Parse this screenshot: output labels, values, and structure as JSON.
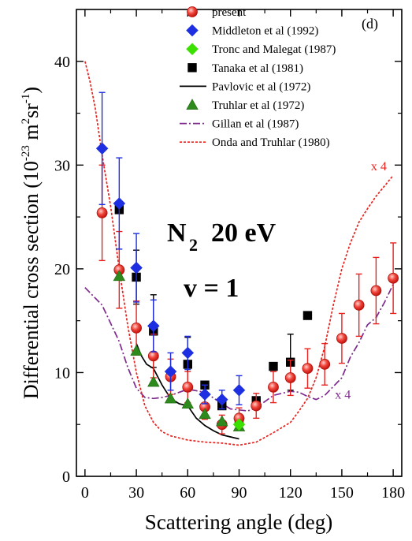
{
  "chart_data": {
    "type": "scatter",
    "panel_label": "(d)",
    "title_molecule": "N",
    "title_subscript": "2",
    "title_energy": "20 eV",
    "title_vib": "v = 1",
    "xlabel": "Scattering angle (deg)",
    "ylabel_parts": [
      "Differential cross section (10",
      "-23",
      " m",
      "2",
      "sr",
      "-1",
      ")"
    ],
    "xlim": [
      -5,
      185
    ],
    "ylim": [
      0,
      45
    ],
    "xticks": [
      0,
      30,
      60,
      90,
      120,
      150,
      180
    ],
    "yticks": [
      0,
      10,
      20,
      30,
      40
    ],
    "xtick_labels": [
      "0",
      "30",
      "60",
      "90",
      "120",
      "150",
      "180"
    ],
    "ytick_labels": [
      "0",
      "10",
      "20",
      "30",
      "40"
    ],
    "annotations": [
      {
        "text": "x 4",
        "x": 167,
        "y": 29.5,
        "color": "#e8231f"
      },
      {
        "text": "x 4",
        "x": 146,
        "y": 7.5,
        "color": "#7d2a8c"
      }
    ],
    "series": [
      {
        "name": "present",
        "kind": "points",
        "marker": "circle",
        "color": "#e8231f",
        "x": [
          10,
          20,
          30,
          40,
          50,
          60,
          70,
          80,
          90,
          100,
          110,
          120,
          130,
          140,
          150,
          160,
          170,
          180
        ],
        "y": [
          25.4,
          19.9,
          14.3,
          11.6,
          9.6,
          8.6,
          6.7,
          5.0,
          5.6,
          6.8,
          8.6,
          9.5,
          10.4,
          10.8,
          13.3,
          16.5,
          17.9,
          19.1
        ],
        "err": [
          4.6,
          3.7,
          2.6,
          2.1,
          1.7,
          1.5,
          1.2,
          0.9,
          1.0,
          1.2,
          1.5,
          1.7,
          1.9,
          2.0,
          2.4,
          3.0,
          3.2,
          3.4
        ]
      },
      {
        "name": "Middleton et al (1992)",
        "kind": "points",
        "marker": "diamond",
        "color": "#1d2fe0",
        "x": [
          10,
          20,
          30,
          40,
          50,
          60,
          70,
          80,
          90
        ],
        "y": [
          31.6,
          26.3,
          20.1,
          14.5,
          10.1,
          11.9,
          7.9,
          7.4,
          8.3
        ],
        "err": [
          5.4,
          4.4,
          3.3,
          2.5,
          1.8,
          1.6,
          0.9,
          0.9,
          1.4
        ]
      },
      {
        "name": "Tronc and Malegat (1987)",
        "kind": "points",
        "marker": "diamond",
        "color": "#3be000",
        "x": [
          90
        ],
        "y": [
          5.0
        ]
      },
      {
        "name": "Tanaka et al (1981)",
        "kind": "points",
        "marker": "square",
        "color": "#000000",
        "x": [
          20,
          30,
          40,
          60,
          70,
          80,
          90,
          100,
          110,
          120,
          130
        ],
        "y": [
          25.7,
          19.2,
          14.0,
          10.8,
          8.8,
          6.8,
          5.4,
          7.3,
          10.6,
          11.0,
          15.5
        ],
        "err": [
          0,
          2.6,
          3.5,
          2.6,
          0,
          0,
          0,
          0,
          0,
          2.7,
          0
        ]
      },
      {
        "name": "Pavlovic et al (1972)",
        "kind": "line",
        "color": "#000000",
        "dash": "",
        "x": [
          30,
          33,
          36,
          40,
          45,
          50,
          55,
          60,
          65,
          70,
          75,
          80,
          85,
          90
        ],
        "y": [
          12.8,
          11.6,
          10.8,
          10.4,
          8.8,
          7.5,
          7.0,
          6.8,
          5.6,
          4.9,
          4.4,
          4.0,
          3.8,
          3.6
        ]
      },
      {
        "name": "Truhlar et al (1972)",
        "kind": "points",
        "marker": "triangle",
        "color": "#2e8a1c",
        "x": [
          20,
          30,
          40,
          50,
          60,
          70,
          80,
          90
        ],
        "y": [
          19.3,
          12.1,
          9.1,
          7.5,
          7.0,
          6.0,
          5.3,
          4.8
        ]
      },
      {
        "name": "Gillan et al (1987)",
        "kind": "line",
        "color": "#7d2a8c",
        "dash": "9,3,2,3",
        "x": [
          0,
          10,
          20,
          25,
          30,
          35,
          40,
          45,
          50,
          60,
          70,
          80,
          85,
          90,
          95,
          100,
          110,
          120,
          125,
          130,
          135,
          140,
          150,
          155,
          160,
          165,
          170,
          175,
          180
        ],
        "y": [
          18.2,
          16.5,
          13.0,
          10.5,
          8.5,
          7.6,
          7.5,
          7.6,
          7.8,
          8.4,
          8.1,
          7.0,
          6.5,
          6.4,
          6.3,
          6.6,
          7.8,
          8.2,
          8.1,
          7.7,
          7.4,
          7.8,
          9.5,
          11.5,
          12.9,
          14.6,
          15.3,
          16.8,
          18.5
        ]
      },
      {
        "name": "Onda and Truhlar (1980)",
        "kind": "line",
        "color": "#e8231f",
        "dash": "3,2",
        "x": [
          0,
          3,
          6,
          10,
          15,
          20,
          25,
          30,
          35,
          40,
          45,
          50,
          60,
          70,
          80,
          90,
          100,
          110,
          120,
          125,
          130,
          135,
          140,
          145,
          150,
          155,
          160,
          165,
          170,
          175,
          180
        ],
        "y": [
          40.0,
          38.0,
          35.5,
          31.0,
          26.0,
          20.0,
          14.5,
          10.0,
          6.8,
          5.2,
          4.3,
          3.9,
          3.5,
          3.3,
          3.2,
          3.0,
          3.3,
          4.2,
          5.2,
          6.3,
          7.5,
          9.5,
          12.5,
          16.5,
          20.0,
          22.5,
          24.5,
          25.8,
          27.0,
          28.0,
          29.0
        ]
      }
    ]
  }
}
